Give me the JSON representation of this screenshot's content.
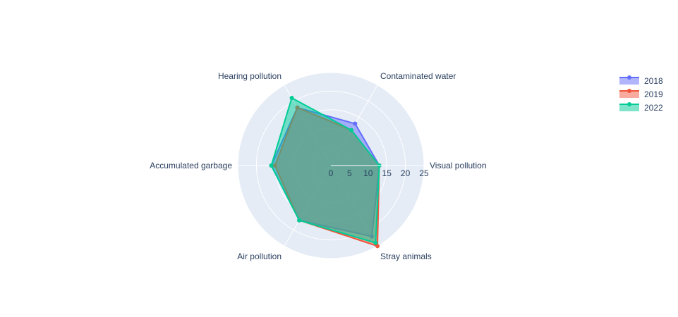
{
  "chart_data": {
    "type": "radar",
    "title": "",
    "categories": [
      "Visual pollution",
      "Contaminated water",
      "Hearing pollution",
      "Accumulated garbage",
      "Air pollution",
      "Stray animals"
    ],
    "radial_range": [
      0,
      25
    ],
    "radial_ticks": [
      0,
      5,
      10,
      15,
      20,
      25
    ],
    "series": [
      {
        "name": "2018",
        "color": "#636efa",
        "values": [
          13,
          13,
          18,
          16,
          17,
          22
        ]
      },
      {
        "name": "2019",
        "color": "#ef553b",
        "values": [
          13,
          11,
          18,
          15,
          17,
          25
        ]
      },
      {
        "name": "2022",
        "color": "#00cc96",
        "values": [
          13,
          11,
          21,
          16,
          17,
          24
        ]
      }
    ],
    "legend_position": "top-right",
    "grid": true,
    "plot_background": "#e5ecf6"
  }
}
